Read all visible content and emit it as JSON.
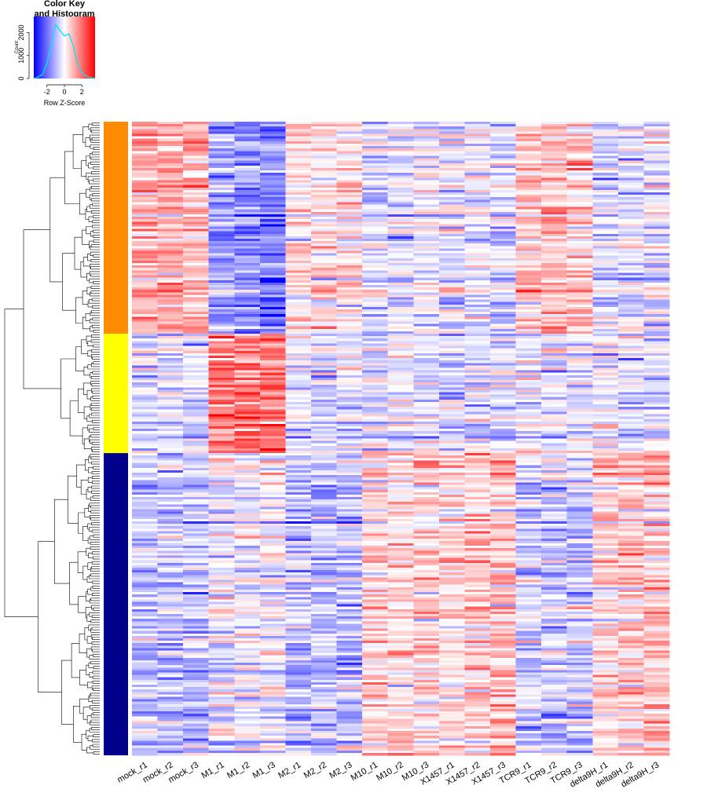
{
  "color_key": {
    "title_line1": "Color Key",
    "title_line2": "and Histogram",
    "y_axis_label": "Count",
    "x_axis_label": "Row Z-Score",
    "x_ticks": [
      "-2",
      "0",
      "2"
    ],
    "y_ticks": [
      "0",
      "1000",
      "2000"
    ],
    "colors": {
      "low": "#0000ff",
      "mid": "#ffffff",
      "high": "#ff0000",
      "histogram_line": "#00e5ee"
    }
  },
  "chart_data": {
    "type": "heatmap",
    "columns": [
      "mock_r1",
      "mock_r2",
      "mock_r3",
      "M1_r1",
      "M1_r2",
      "M1_r3",
      "M2_r1",
      "M2_r2",
      "M2_r3",
      "M10_r1",
      "M10_r2",
      "M10_r3",
      "X1457_r1",
      "X1457_r2",
      "X1457_r3",
      "TCR9_r1",
      "TCR9_r2",
      "TCR9_r3",
      "delta9H_r1",
      "delta9H_r2",
      "delta9H_r3"
    ],
    "row_clusters": [
      {
        "color": "#ff8c00",
        "row_fraction": 0.335,
        "mean_z": [
          0.9,
          0.9,
          0.8,
          -1.2,
          -1.4,
          -1.6,
          0.2,
          0.3,
          0.3,
          -0.4,
          -0.3,
          -0.2,
          -0.4,
          -0.3,
          -0.5,
          0.6,
          0.7,
          0.6,
          -0.4,
          -0.3,
          -0.3
        ]
      },
      {
        "color": "#ffff00",
        "row_fraction": 0.19,
        "mean_z": [
          -0.3,
          -0.3,
          -0.4,
          1.6,
          1.7,
          1.8,
          -0.3,
          -0.4,
          -0.3,
          -0.3,
          -0.2,
          -0.3,
          -0.3,
          -0.3,
          -0.3,
          -0.2,
          -0.2,
          -0.3,
          -0.2,
          -0.3,
          -0.3
        ]
      },
      {
        "color": "#00008b",
        "row_fraction": 0.475,
        "mean_z": [
          -0.6,
          -0.6,
          -0.7,
          -0.2,
          -0.1,
          0.0,
          -0.7,
          -0.7,
          -0.6,
          0.6,
          0.6,
          0.5,
          0.5,
          0.6,
          0.8,
          -0.5,
          -0.5,
          -0.6,
          0.6,
          0.7,
          0.7
        ]
      }
    ],
    "z_range": [
      -3.5,
      3.5
    ],
    "histogram": {
      "x": [
        -3.5,
        -3.0,
        -2.5,
        -2.0,
        -1.5,
        -1.0,
        -0.5,
        0.0,
        0.5,
        1.0,
        1.5,
        2.0,
        2.5,
        3.0,
        3.5
      ],
      "counts": [
        0,
        60,
        180,
        650,
        1450,
        2350,
        2100,
        1850,
        1950,
        1450,
        650,
        260,
        90,
        40,
        0
      ]
    }
  }
}
